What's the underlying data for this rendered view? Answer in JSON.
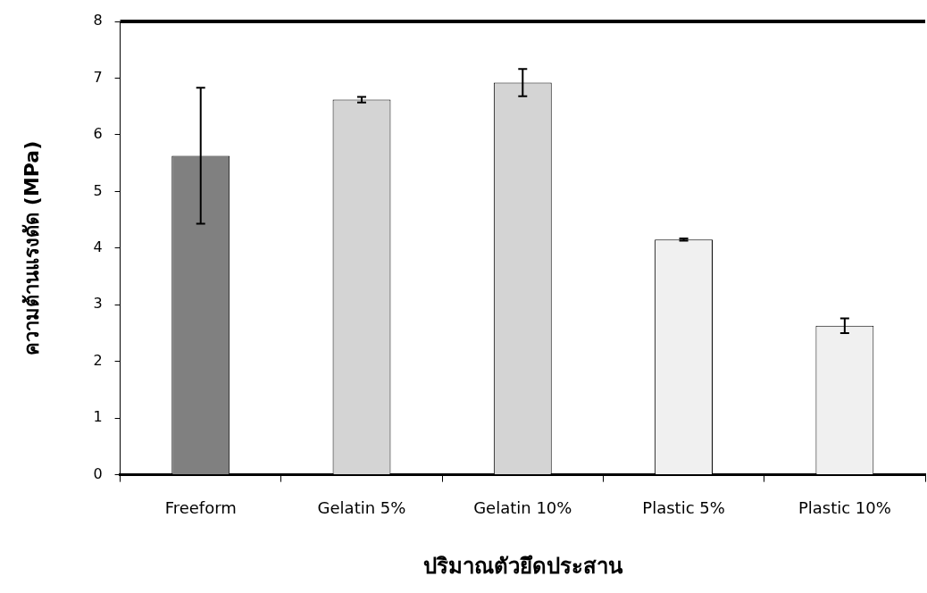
{
  "chart_data": {
    "type": "bar",
    "xlabel": "ปริมาณตัวยึดประสาน",
    "ylabel": "ความต้านแรงดัด (MPa)",
    "categories": [
      "Freeform",
      "Gelatin 5%",
      "Gelatin 10%",
      "Plastic 5%",
      "Plastic 10%"
    ],
    "values": [
      5.63,
      6.62,
      6.92,
      4.15,
      2.63
    ],
    "errors": [
      1.2,
      0.05,
      0.24,
      0.02,
      0.13
    ],
    "colors": [
      "#808080",
      "#d4d4d4",
      "#d4d4d4",
      "#f0f0f0",
      "#f0f0f0"
    ],
    "ylim": [
      0,
      8
    ],
    "yticks": [
      0,
      1,
      2,
      3,
      4,
      5,
      6,
      7,
      8
    ],
    "grid": false,
    "legend": false
  }
}
